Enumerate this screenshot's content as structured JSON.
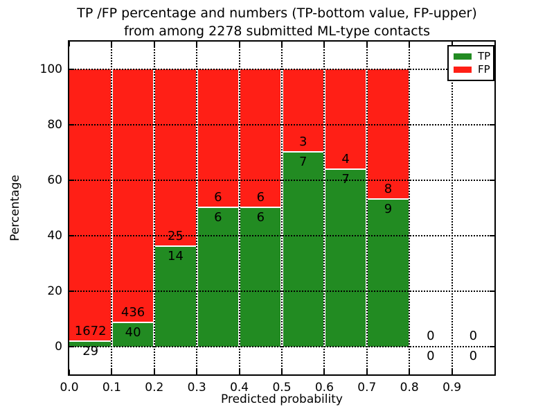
{
  "title": {
    "line1": "TP /FP percentage and numbers (TP-bottom value, FP-upper)",
    "line2": "from among 2278 submitted ML-type contacts"
  },
  "chart_data": {
    "type": "bar",
    "stacked": true,
    "title": "TP /FP percentage and numbers (TP-bottom value, FP-upper) from among 2278 submitted ML-type contacts",
    "xlabel": "Predicted probability",
    "ylabel": "Percentage",
    "xlim": [
      0.0,
      1.0
    ],
    "ylim": [
      -10,
      110
    ],
    "grid": true,
    "legend_position": "upper right",
    "series": [
      {
        "name": "TP",
        "color": "#228b22"
      },
      {
        "name": "FP",
        "color": "#ff1f16"
      }
    ],
    "x_ticks": [
      {
        "value": 0.0,
        "label": "0.0"
      },
      {
        "value": 0.1,
        "label": "0.1"
      },
      {
        "value": 0.2,
        "label": "0.2"
      },
      {
        "value": 0.3,
        "label": "0.3"
      },
      {
        "value": 0.4,
        "label": "0.4"
      },
      {
        "value": 0.5,
        "label": "0.5"
      },
      {
        "value": 0.6,
        "label": "0.6"
      },
      {
        "value": 0.7,
        "label": "0.7"
      },
      {
        "value": 0.8,
        "label": "0.8"
      },
      {
        "value": 0.9,
        "label": "0.9"
      }
    ],
    "y_ticks": [
      {
        "value": 0,
        "label": "0"
      },
      {
        "value": 20,
        "label": "20"
      },
      {
        "value": 40,
        "label": "40"
      },
      {
        "value": 60,
        "label": "60"
      },
      {
        "value": 80,
        "label": "80"
      },
      {
        "value": 100,
        "label": "100"
      }
    ],
    "bins": [
      {
        "x0": 0.0,
        "x1": 0.1,
        "tp": 29,
        "fp": 1672
      },
      {
        "x0": 0.1,
        "x1": 0.2,
        "tp": 40,
        "fp": 436
      },
      {
        "x0": 0.2,
        "x1": 0.3,
        "tp": 14,
        "fp": 25
      },
      {
        "x0": 0.3,
        "x1": 0.4,
        "tp": 6,
        "fp": 6
      },
      {
        "x0": 0.4,
        "x1": 0.5,
        "tp": 6,
        "fp": 6
      },
      {
        "x0": 0.5,
        "x1": 0.6,
        "tp": 7,
        "fp": 3
      },
      {
        "x0": 0.6,
        "x1": 0.7,
        "tp": 7,
        "fp": 4
      },
      {
        "x0": 0.7,
        "x1": 0.8,
        "tp": 9,
        "fp": 8
      },
      {
        "x0": 0.8,
        "x1": 0.9,
        "tp": 0,
        "fp": 0
      },
      {
        "x0": 0.9,
        "x1": 1.0,
        "tp": 0,
        "fp": 0
      }
    ]
  }
}
